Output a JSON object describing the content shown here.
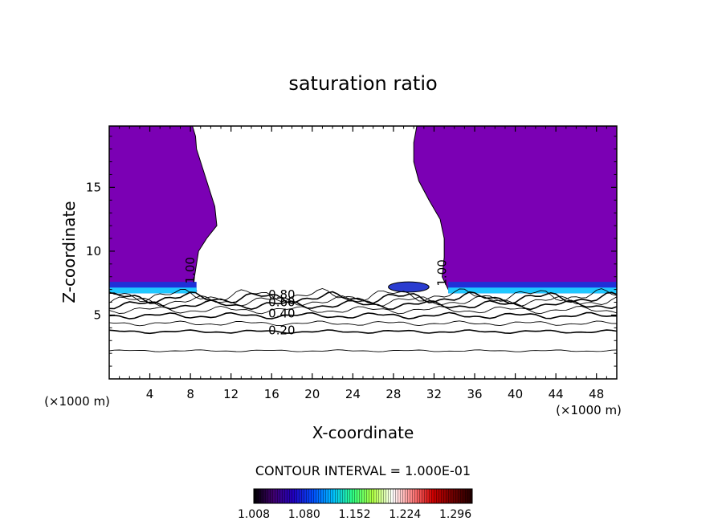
{
  "chart_data": {
    "type": "heatmap",
    "title": "saturation ratio",
    "xlabel": "X-coordinate",
    "ylabel": "Z-coordinate",
    "x_unit_label": "(×1000 m)",
    "y_unit_label": "(×1000 m)",
    "xlim": [
      0,
      50
    ],
    "ylim": [
      0,
      19.8
    ],
    "x_ticks": [
      4,
      8,
      12,
      16,
      20,
      24,
      28,
      32,
      36,
      40,
      44,
      48
    ],
    "y_ticks": [
      5,
      10,
      15
    ],
    "contour_interval_label": "CONTOUR INTERVAL = 1.000E-01",
    "contour_labels": [
      {
        "text": "0.20",
        "x": 17.0,
        "y": 3.5
      },
      {
        "text": "0.40",
        "x": 17.0,
        "y": 4.8
      },
      {
        "text": "0.60",
        "x": 17.0,
        "y": 5.7
      },
      {
        "text": "0.80",
        "x": 17.0,
        "y": 6.3
      },
      {
        "text": "1.00",
        "x": 8.4,
        "y": 8.5
      },
      {
        "text": "1.00",
        "x": 33.2,
        "y": 8.3
      }
    ],
    "contour_levels_below_cloud": [
      {
        "level": 0.1,
        "z": 2.2
      },
      {
        "level": 0.2,
        "z": 3.7
      },
      {
        "level": 0.3,
        "z": 4.35
      },
      {
        "level": 0.4,
        "z": 4.95
      },
      {
        "level": 0.5,
        "z": 5.4
      },
      {
        "level": 0.6,
        "z": 5.8
      },
      {
        "level": 0.7,
        "z": 6.1
      },
      {
        "level": 0.8,
        "z": 6.35
      },
      {
        "level": 0.9,
        "z": 6.55
      }
    ],
    "colorbar": {
      "min": 1.008,
      "max": 1.32,
      "tick_labels": [
        "1.008",
        "1.080",
        "1.152",
        "1.224",
        "1.296"
      ],
      "colors": [
        "#000000",
        "#400070",
        "#2000c0",
        "#0050ff",
        "#00c0ff",
        "#30ff80",
        "#b0ff40",
        "#ffffff",
        "#ff8080",
        "#d00000",
        "#700000",
        "#200000"
      ]
    },
    "regions": [
      {
        "name": "left",
        "x_from": 0,
        "boundary": [
          [
            19.8,
            8.2
          ],
          [
            19.0,
            8.5
          ],
          [
            18.0,
            8.6
          ],
          [
            16.5,
            9.2
          ],
          [
            15.0,
            9.8
          ],
          [
            13.5,
            10.4
          ],
          [
            12.0,
            10.6
          ],
          [
            11.0,
            9.6
          ],
          [
            10.0,
            8.8
          ],
          [
            9.0,
            8.6
          ],
          [
            8.0,
            8.4
          ],
          [
            7.2,
            8.3
          ],
          [
            6.9,
            8.6
          ]
        ],
        "base": 6.7,
        "fill": "#7b00b4"
      },
      {
        "name": "right",
        "x_to": 50,
        "boundary": [
          [
            19.8,
            30.3
          ],
          [
            18.5,
            30.0
          ],
          [
            17.0,
            30.0
          ],
          [
            15.5,
            30.5
          ],
          [
            14.0,
            31.5
          ],
          [
            12.5,
            32.6
          ],
          [
            11.0,
            33.0
          ],
          [
            9.5,
            33.0
          ],
          [
            8.0,
            32.8
          ],
          [
            7.0,
            33.4
          ]
        ],
        "base": 6.7,
        "fill": "#7b00b4"
      },
      {
        "name": "patch",
        "x_from": 27.5,
        "x_to": 31.5,
        "z_from": 6.8,
        "z_to": 7.6,
        "fill": "#2a3cd0"
      }
    ]
  }
}
